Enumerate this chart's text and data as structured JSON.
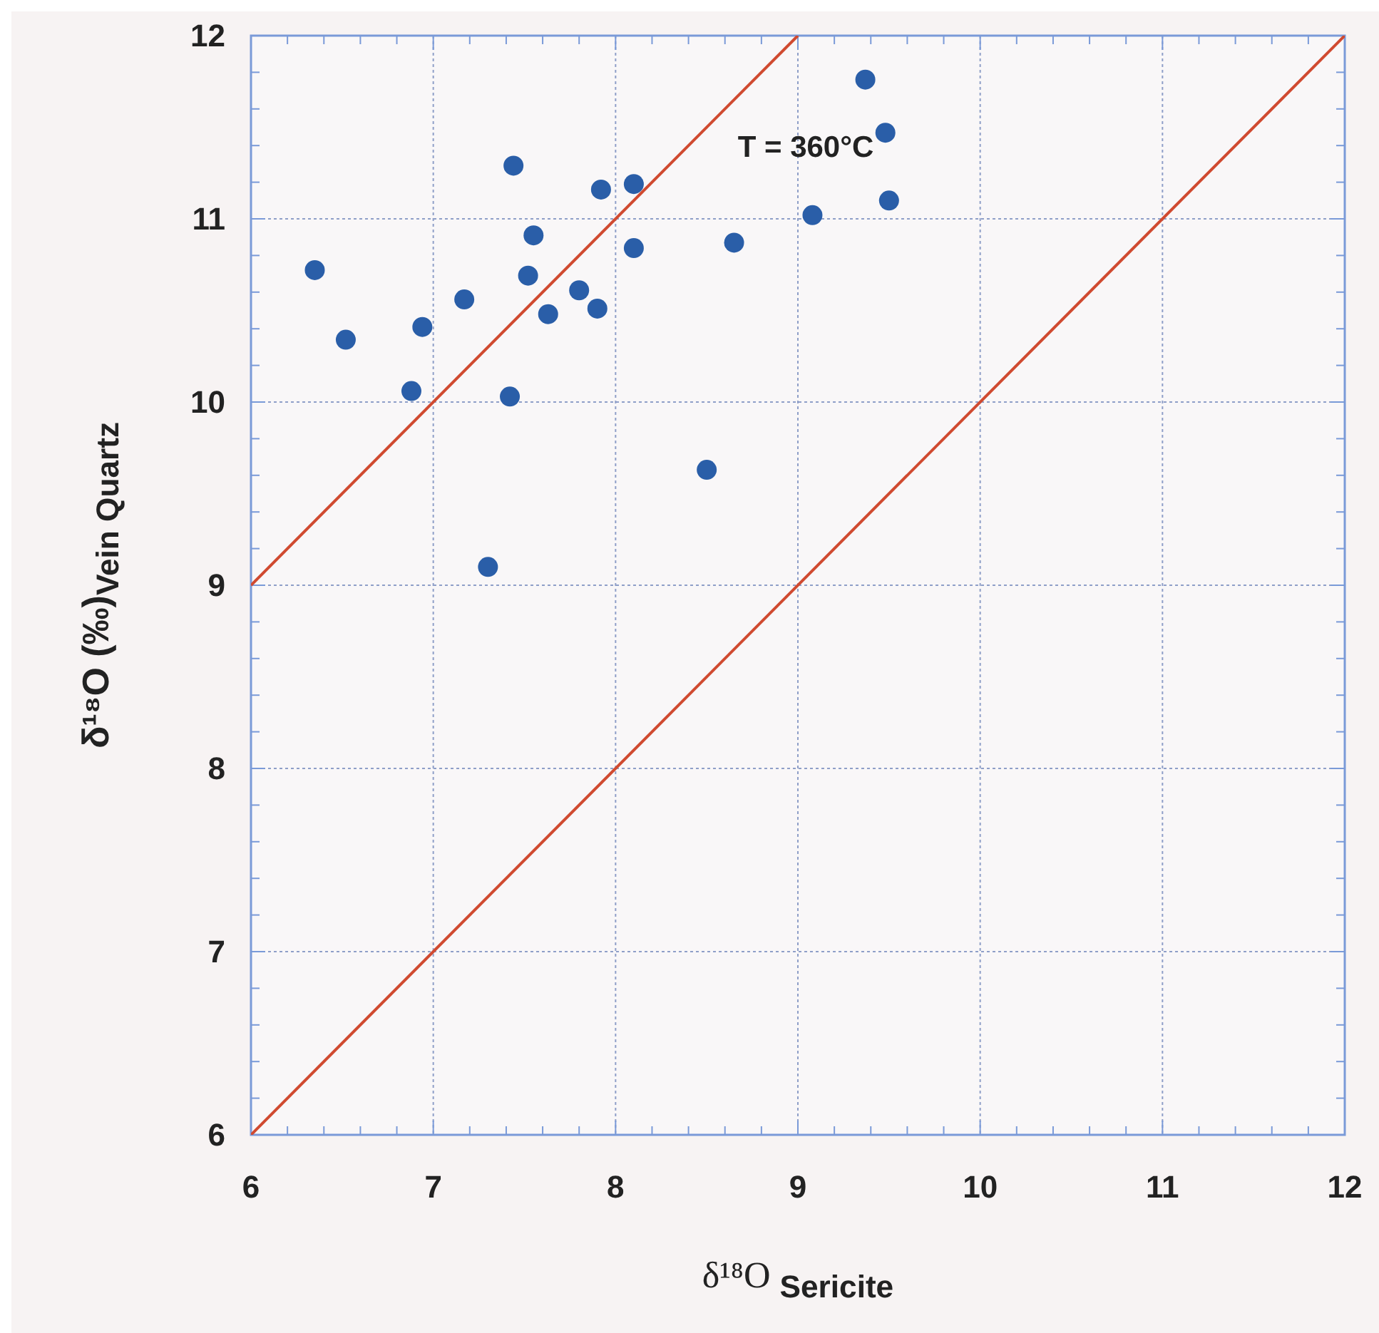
{
  "chart_data": {
    "type": "scatter",
    "xlabel": "δ¹⁸O $_{Sericite}$",
    "ylabel": "δ¹⁸O (‰)$_{Vein Quartz}$",
    "annotations": [
      "T = 360°C"
    ],
    "xlim": [
      6,
      12
    ],
    "ylim": [
      6,
      12
    ],
    "xticks": [
      6,
      {
        "value": 6.2,
        "label": null
      },
      {
        "value": 6.4,
        "label": null
      },
      {
        "value": 6.6,
        "label": null
      },
      {
        "value": 6.8,
        "label": null
      },
      7,
      {
        "value": 7.2,
        "label": null
      },
      {
        "value": 7.4,
        "label": null
      },
      {
        "value": 7.6,
        "label": null
      },
      {
        "value": 7.8,
        "label": null
      },
      8,
      {
        "value": 8.2,
        "label": null
      },
      {
        "value": 8.4,
        "label": null
      },
      {
        "value": 8.6,
        "label": null
      },
      {
        "value": 8.8,
        "label": null
      },
      9,
      {
        "value": 9.2,
        "label": null
      },
      {
        "value": 9.4,
        "label": null
      },
      {
        "value": 9.6,
        "label": null
      },
      {
        "value": 9.8,
        "label": null
      },
      10,
      {
        "value": 10.2,
        "label": null
      },
      {
        "value": 10.4,
        "label": null
      },
      {
        "value": 10.6,
        "label": null
      },
      {
        "value": 10.8,
        "label": null
      },
      11,
      {
        "value": 11.2,
        "label": null
      },
      {
        "value": 11.4,
        "label": null
      },
      {
        "value": 11.6,
        "label": null
      },
      {
        "value": 11.8,
        "label": null
      },
      12
    ],
    "yticks": [
      6,
      {
        "value": 6.2,
        "label": null
      },
      {
        "value": 6.4,
        "label": null
      },
      {
        "value": 6.6,
        "label": null
      },
      {
        "value": 6.8,
        "label": null
      },
      7,
      {
        "value": 7.2,
        "label": null
      },
      {
        "value": 7.4,
        "label": null
      },
      {
        "value": 7.6,
        "label": null
      },
      {
        "value": 7.8,
        "label": null
      },
      8,
      {
        "value": 8.2,
        "label": null
      },
      {
        "value": 8.4,
        "label": null
      },
      {
        "value": 8.6,
        "label": null
      },
      {
        "value": 8.8,
        "label": null
      },
      9,
      {
        "value": 9.2,
        "label": null
      },
      {
        "value": 9.4,
        "label": null
      },
      {
        "value": 9.6,
        "label": null
      },
      {
        "value": 9.8,
        "label": null
      },
      10,
      {
        "value": 10.2,
        "label": null
      },
      {
        "value": 10.4,
        "label": null
      },
      {
        "value": 10.6,
        "label": null
      },
      {
        "value": 10.8,
        "label": null
      },
      11,
      {
        "value": 11.2,
        "label": null
      },
      {
        "value": 11.4,
        "label": null
      },
      {
        "value": 11.6,
        "label": null
      },
      {
        "value": 11.8,
        "label": null
      },
      12
    ],
    "grid": true,
    "marker": "circle",
    "series": [
      {
        "color": "#2a5ea8",
        "x": [
          6.35,
          6.52,
          6.88,
          6.94,
          7.17,
          7.42,
          7.3,
          7.44,
          7.55,
          7.52,
          7.63,
          7.8,
          7.9,
          7.92,
          8.1,
          8.1,
          8.5,
          8.65,
          9.08,
          9.37,
          9.48,
          9.5
        ],
        "values": [
          10.72,
          10.34,
          10.06,
          10.41,
          10.56,
          10.03,
          9.1,
          11.29,
          10.91,
          10.69,
          10.48,
          10.61,
          10.51,
          11.16,
          11.19,
          10.84,
          9.63,
          10.87,
          11.02,
          11.76,
          11.47,
          11.1
        ]
      },
      {
        "type": "line",
        "color": "#d04a30",
        "marker": "none",
        "line_style": "solid",
        "x": [
          6,
          9
        ],
        "values": [
          9,
          12
        ]
      },
      {
        "type": "line",
        "color": "#d04a30",
        "marker": "none",
        "line_style": "solid",
        "x": [
          6,
          12
        ],
        "values": [
          6,
          12
        ]
      }
    ]
  }
}
